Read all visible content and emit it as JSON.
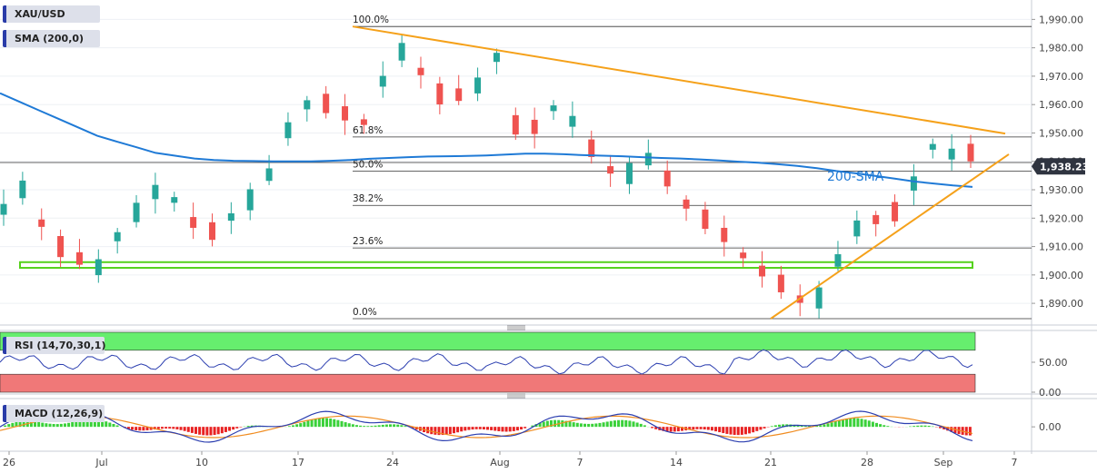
{
  "symbol": "XAU/USD",
  "indicators": {
    "sma": "SMA (200,0)",
    "rsi": "RSI (14,70,30,1)",
    "macd": "MACD (12,26,9)"
  },
  "annotation": "200-SMA",
  "colors": {
    "up": "#26a69a",
    "down": "#ef5350",
    "sma": "#1f7ad6",
    "trendline": "#f5a11a",
    "support_box": "#55d11b",
    "rsi_line": "#2c3fb0",
    "rsi_overbought": "#66ee6e",
    "rsi_oversold": "#f07878",
    "macd_line": "#2c3fb0",
    "signal_line": "#f08c20",
    "hist_pos": "#3ad13a",
    "hist_neg": "#e82222"
  },
  "chart_data": {
    "type": "candlestick",
    "ylim": [
      1883,
      1993
    ],
    "y_ticks": [
      "1,990.00",
      "1,980.00",
      "1,970.00",
      "1,960.00",
      "1,950.00",
      "1,940.00",
      "1,930.00",
      "1,920.00",
      "1,910.00",
      "1,900.00",
      "1,890.00"
    ],
    "y_tick_values": [
      1990,
      1980,
      1970,
      1960,
      1950,
      1940,
      1930,
      1920,
      1910,
      1900,
      1890
    ],
    "x_labels": [
      "26",
      "Jul",
      "10",
      "17",
      "24",
      "Aug",
      "7",
      "14",
      "21",
      "28",
      "Sep",
      "7"
    ],
    "last_price": "1,938.23",
    "last_price_value": 1938.23,
    "fibonacci": [
      {
        "label": "100.0%",
        "value": 1987.5
      },
      {
        "label": "61.8%",
        "value": 1948.6
      },
      {
        "label": "50.0%",
        "value": 1936.6
      },
      {
        "label": "38.2%",
        "value": 1924.5
      },
      {
        "label": "23.6%",
        "value": 1909.5
      },
      {
        "label": "0.0%",
        "value": 1884.6
      }
    ],
    "support_zone": [
      1902.5,
      1904.5
    ],
    "resistance_line": {
      "start": [
        "Jul 20",
        1987.5
      ],
      "end": [
        "Sep 6",
        1949.8
      ]
    },
    "support_line": {
      "start": [
        "Aug 21",
        1884.6
      ],
      "end": [
        "Sep 6",
        1942.5
      ]
    },
    "sma_200": [
      1964,
      1961,
      1958,
      1955,
      1952,
      1949,
      1947,
      1945,
      1943,
      1942,
      1941,
      1940.5,
      1940.2,
      1940.1,
      1940,
      1940,
      1940,
      1940.2,
      1940.5,
      1940.9,
      1941.2,
      1941.5,
      1941.7,
      1941.8,
      1941.9,
      1942.1,
      1942.4,
      1942.7,
      1942.7,
      1942.5,
      1942.2,
      1942,
      1941.8,
      1941.5,
      1941.2,
      1941,
      1940.7,
      1940.3,
      1939.9,
      1939.5,
      1939,
      1938.4,
      1937.6,
      1936.6,
      1935.8,
      1934.9,
      1933.9,
      1932.9,
      1932.2,
      1931.5,
      1931
    ],
    "rsi_ylim": [
      0,
      100
    ],
    "rsi_ticks": [
      "50.00",
      "0.00"
    ],
    "rsi_tick_values": [
      50,
      0
    ],
    "rsi_levels": [
      70,
      30
    ],
    "macd_ticks": [
      "0.00"
    ],
    "macd_tick_values": [
      0
    ],
    "macd_ylim": [
      -12,
      14
    ]
  }
}
